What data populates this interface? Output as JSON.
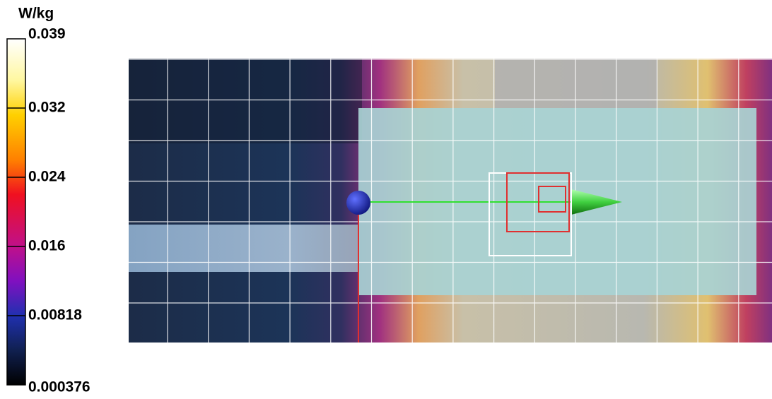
{
  "colorbar": {
    "unit": "W/kg",
    "ticks": [
      0.039,
      0.032,
      0.024,
      0.016,
      0.00818,
      0.000376
    ]
  }
}
